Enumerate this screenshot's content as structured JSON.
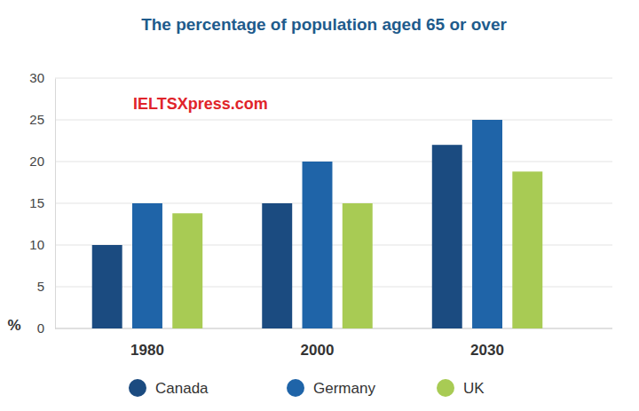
{
  "chart_data": {
    "type": "bar",
    "title": "The percentage of population aged 65 or over",
    "y_label": "%",
    "annotations": [
      "IELTSXpress.com"
    ],
    "categories": [
      "1980",
      "2000",
      "2030"
    ],
    "series": [
      {
        "name": "Canada",
        "color": "#1b4b80",
        "values": [
          10,
          15,
          22
        ]
      },
      {
        "name": "Germany",
        "color": "#1f64a8",
        "values": [
          15,
          20,
          25
        ]
      },
      {
        "name": "UK",
        "color": "#a8cb54",
        "values": [
          13.8,
          15,
          18.8
        ]
      }
    ],
    "ylim": [
      0,
      30
    ],
    "yticks": [
      0,
      5,
      10,
      15,
      20,
      25,
      30
    ],
    "grid": true,
    "legend": "bottom"
  }
}
